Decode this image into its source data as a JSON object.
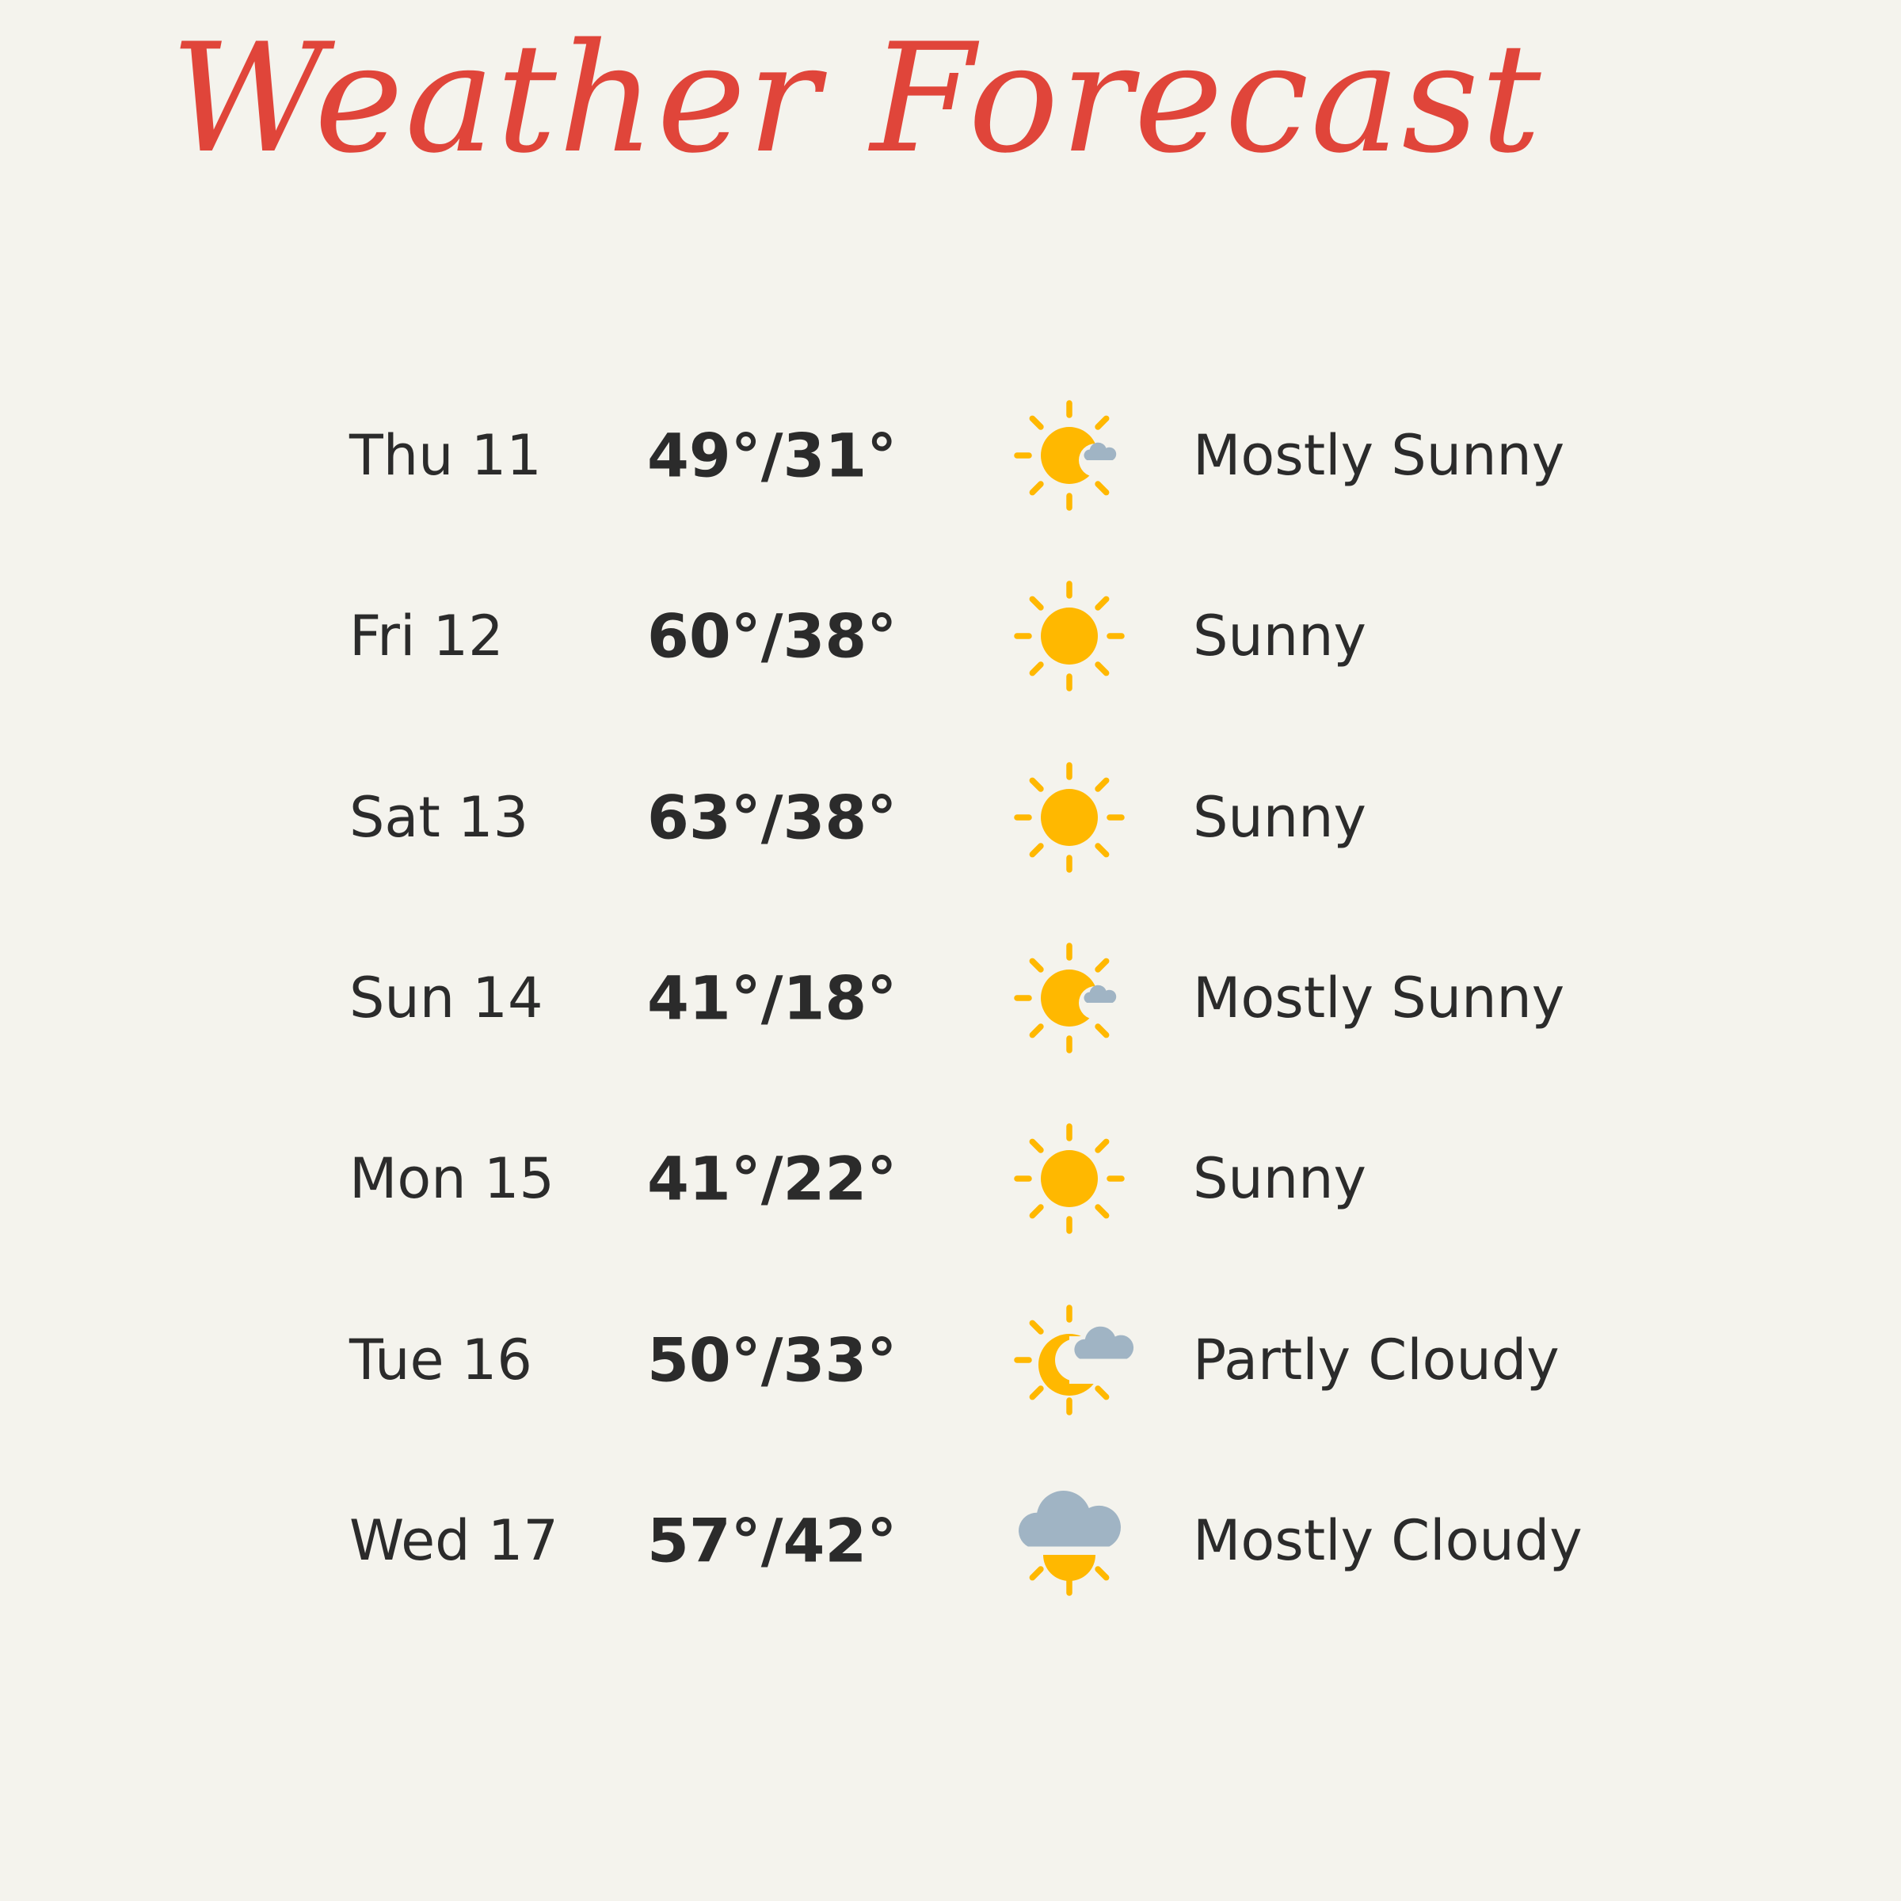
{
  "title": "Weather Forecast",
  "colors": {
    "title": "#e0453a",
    "sun": "#ffb800",
    "cloud": "#a0b4c4",
    "text": "#2b2b2b",
    "background": "#f4f3ed"
  },
  "forecast": [
    {
      "day": "Thu 11",
      "temp": "49°/31°",
      "icon": "mostly-sunny-icon",
      "condition": "Mostly Sunny"
    },
    {
      "day": "Fri 12",
      "temp": "60°/38°",
      "icon": "sunny-icon",
      "condition": "Sunny"
    },
    {
      "day": "Sat 13",
      "temp": "63°/38°",
      "icon": "sunny-icon",
      "condition": "Sunny"
    },
    {
      "day": "Sun 14",
      "temp": "41°/18°",
      "icon": "mostly-sunny-icon",
      "condition": "Mostly Sunny"
    },
    {
      "day": "Mon 15",
      "temp": "41°/22°",
      "icon": "sunny-icon",
      "condition": "Sunny"
    },
    {
      "day": "Tue 16",
      "temp": "50°/33°",
      "icon": "partly-cloudy-icon",
      "condition": "Partly Cloudy"
    },
    {
      "day": "Wed 17",
      "temp": "57°/42°",
      "icon": "mostly-cloudy-icon",
      "condition": "Mostly Cloudy"
    }
  ]
}
